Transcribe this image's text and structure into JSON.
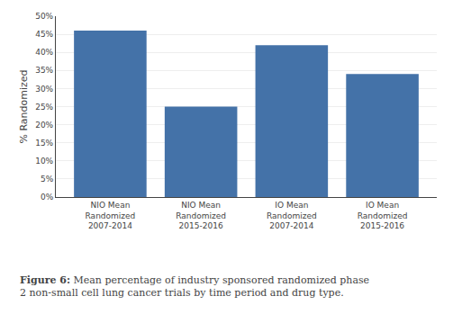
{
  "chart_data": {
    "type": "bar",
    "categories": [
      "NIO Mean\nRandomized\n2007-2014",
      "NIO Mean\nRandomized\n2015-2016",
      "IO Mean\nRandomized\n2007-2014",
      "IO Mean\nRandomized\n2015-2016"
    ],
    "values": [
      46,
      25,
      42,
      34
    ],
    "color": "#4472a8",
    "ylabel": "% Randomized",
    "ylim": [
      0,
      50
    ],
    "yticks": [
      {
        "value": 0,
        "label": "0%"
      },
      {
        "value": 5,
        "label": "5%"
      },
      {
        "value": 10,
        "label": "10%"
      },
      {
        "value": 15,
        "label": "15%"
      },
      {
        "value": 20,
        "label": "20%"
      },
      {
        "value": 25,
        "label": "25%"
      },
      {
        "value": 30,
        "label": "30%"
      },
      {
        "value": 35,
        "label": "35%"
      },
      {
        "value": 40,
        "label": "40%"
      },
      {
        "value": 45,
        "label": "45%"
      },
      {
        "value": 50,
        "label": "50%"
      }
    ],
    "grid": true,
    "annotations": [
      "Figure 6: Mean percentage of industry sponsored randomized phase\n2 non-small cell lung cancer trials by time period and drug type."
    ]
  }
}
